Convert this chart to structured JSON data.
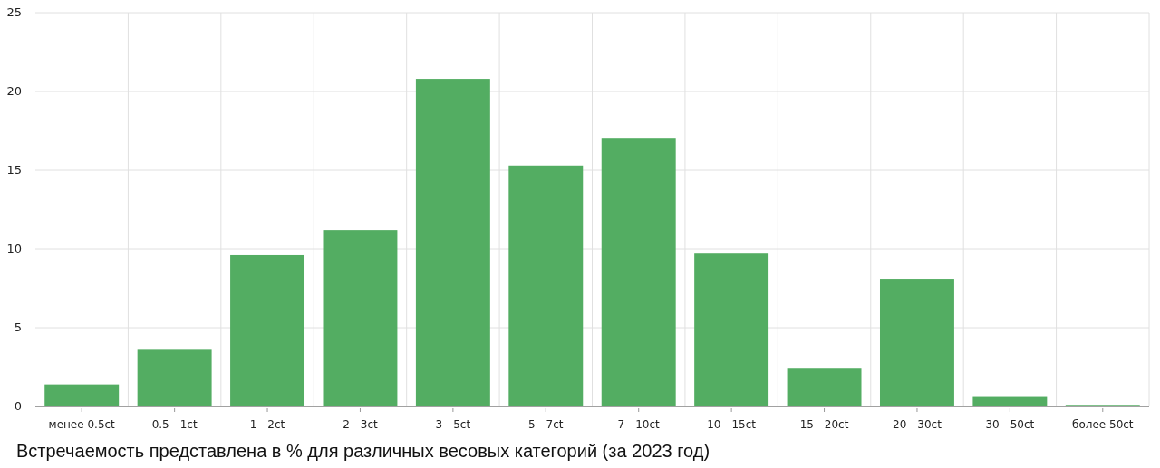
{
  "chart_data": {
    "type": "bar",
    "categories": [
      "менее 0.5ct",
      "0.5 - 1ct",
      "1 - 2ct",
      "2 - 3ct",
      "3 - 5ct",
      "5 - 7ct",
      "7 - 10ct",
      "10 - 15ct",
      "15 - 20ct",
      "20 - 30ct",
      "30 - 50ct",
      "более 50ct"
    ],
    "values": [
      1.4,
      3.6,
      9.6,
      11.2,
      20.8,
      15.3,
      17.0,
      9.7,
      2.4,
      8.1,
      0.6,
      0.1
    ],
    "color": "#53ad62",
    "ylim": [
      0,
      25
    ],
    "yticks": [
      0,
      5,
      10,
      15,
      20,
      25
    ],
    "grid": true,
    "annotations": [
      "Встречаемость представлена в % для различных весовых категорий (за 2023 год)"
    ]
  }
}
